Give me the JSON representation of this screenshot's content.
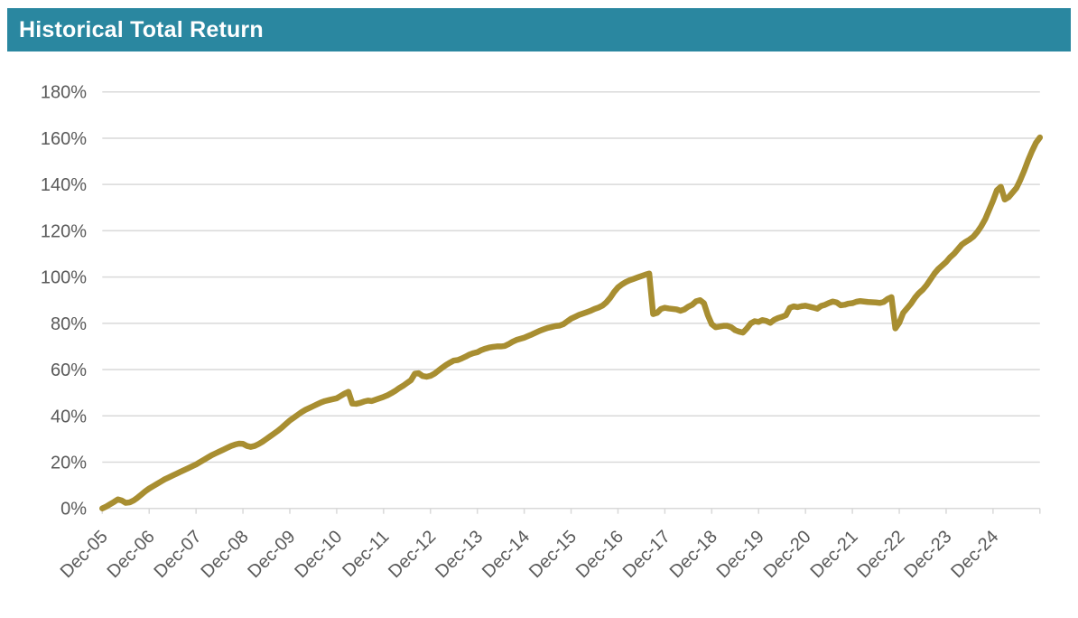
{
  "header": {
    "title": "Historical Total Return",
    "bg_color": "#2A87A0",
    "text_color": "#FFFFFF"
  },
  "chart_data": {
    "type": "line",
    "title": "Historical Total Return",
    "series": [
      {
        "name": "Total Return",
        "frequency": "monthly",
        "start_label": "Dec-05",
        "values": [
          0,
          0.8,
          1.8,
          2.8,
          3.9,
          3.4,
          2.4,
          2.6,
          3.4,
          4.6,
          6.0,
          7.4,
          8.6,
          9.6,
          10.6,
          11.6,
          12.6,
          13.4,
          14.2,
          15.0,
          15.8,
          16.6,
          17.4,
          18.2,
          19.0,
          20.0,
          21.0,
          22.0,
          23.0,
          23.8,
          24.6,
          25.4,
          26.2,
          27.0,
          27.6,
          28.0,
          27.9,
          27.0,
          26.6,
          27.0,
          27.8,
          28.8,
          30.0,
          31.2,
          32.4,
          33.6,
          35.0,
          36.5,
          38.0,
          39.2,
          40.4,
          41.6,
          42.6,
          43.4,
          44.2,
          45.0,
          45.8,
          46.4,
          46.8,
          47.2,
          47.6,
          48.6,
          49.6,
          50.4,
          45.3,
          45.2,
          45.6,
          46.2,
          46.6,
          46.4,
          47.0,
          47.6,
          48.2,
          48.9,
          49.8,
          50.8,
          52.0,
          53.0,
          54.2,
          55.4,
          58.2,
          58.4,
          57.2,
          56.9,
          57.3,
          58.2,
          59.5,
          60.8,
          62.0,
          63.0,
          63.9,
          64.1,
          64.8,
          65.6,
          66.5,
          67.1,
          67.5,
          68.4,
          69.0,
          69.5,
          69.8,
          70.0,
          70.0,
          70.2,
          71.0,
          72.0,
          72.8,
          73.3,
          73.8,
          74.5,
          75.2,
          76.0,
          76.8,
          77.4,
          78.0,
          78.4,
          78.8,
          79.0,
          79.6,
          80.8,
          82.0,
          82.8,
          83.6,
          84.2,
          84.8,
          85.4,
          86.2,
          86.8,
          87.6,
          89.0,
          91.0,
          93.5,
          95.5,
          96.8,
          97.8,
          98.6,
          99.2,
          99.8,
          100.4,
          101.0,
          101.5,
          84.0,
          84.5,
          86.2,
          86.7,
          86.4,
          86.2,
          86.0,
          85.4,
          86.0,
          87.2,
          88.0,
          89.5,
          90.0,
          88.7,
          83.5,
          79.6,
          78.3,
          78.6,
          78.9,
          78.9,
          78.3,
          77.0,
          76.4,
          76.0,
          77.8,
          80.0,
          80.9,
          80.6,
          81.4,
          81.0,
          80.2,
          81.5,
          82.3,
          82.8,
          83.5,
          86.7,
          87.3,
          87.0,
          87.4,
          87.6,
          87.2,
          86.8,
          86.3,
          87.5,
          88.0,
          88.8,
          89.4,
          89.0,
          87.8,
          88.0,
          88.5,
          88.7,
          89.3,
          89.6,
          89.4,
          89.2,
          89.1,
          89.0,
          88.8,
          89.2,
          90.5,
          91.3,
          77.8,
          80.2,
          84.5,
          86.5,
          88.5,
          91.0,
          93.0,
          94.5,
          96.5,
          99.0,
          101.5,
          103.5,
          105.0,
          106.5,
          108.5,
          110.0,
          112.0,
          114.0,
          115.2,
          116.2,
          117.5,
          119.5,
          122.0,
          125.0,
          129.0,
          133.0,
          137.5,
          139.0,
          133.5,
          134.5,
          136.5,
          138.5,
          142.0,
          146.0,
          150.5,
          154.5,
          158.0,
          160.3
        ]
      }
    ],
    "x_tick_labels": [
      "Dec-05",
      "Dec-06",
      "Dec-07",
      "Dec-08",
      "Dec-09",
      "Dec-10",
      "Dec-11",
      "Dec-12",
      "Dec-13",
      "Dec-14",
      "Dec-15",
      "Dec-16",
      "Dec-17",
      "Dec-18",
      "Dec-19",
      "Dec-20",
      "Dec-21",
      "Dec-22",
      "Dec-23",
      "Dec-24"
    ],
    "y_tick_labels": [
      "0%",
      "20%",
      "40%",
      "60%",
      "80%",
      "100%",
      "120%",
      "140%",
      "160%",
      "180%"
    ],
    "ylim": [
      0,
      180
    ],
    "y_tick_step": 20,
    "grid": true,
    "legend": "none",
    "line_color": "#A88E31",
    "gridline_color": "#D9D9D9",
    "axis_label_color": "#595959"
  }
}
